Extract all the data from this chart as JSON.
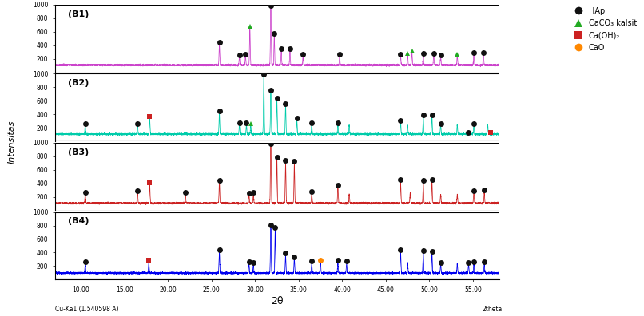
{
  "title": "",
  "xlabel": "2θ",
  "ylabel": "Intensitas",
  "x_label_bottom": "Cu-Ka1 (1.540598 A)",
  "x_label_right": "2theta",
  "panels": [
    "B1",
    "B2",
    "B3",
    "B4"
  ],
  "panel_colors": [
    "#cc44cc",
    "#00ccaa",
    "#cc2222",
    "#0000ee"
  ],
  "x_range": [
    7,
    58
  ],
  "y_range": [
    0,
    1000
  ],
  "y_ticks": [
    200,
    400,
    600,
    800,
    1000
  ],
  "x_ticks": [
    10.0,
    15.0,
    20.0,
    25.0,
    30.0,
    35.0,
    40.0,
    45.0,
    50.0,
    55.0
  ],
  "legend_labels": [
    "HAp",
    "CaCO₃ kalsit",
    "Ca(OH)₂",
    "CaO"
  ],
  "legend_colors": [
    "#111111",
    "#22aa22",
    "#cc2222",
    "#ff8800"
  ],
  "background_color": "#ffffff",
  "noise_base": 110,
  "noise_std": 6,
  "peak_sigma": 0.04,
  "B1_peaks": [
    [
      25.9,
      310
    ],
    [
      28.2,
      130
    ],
    [
      28.9,
      130
    ],
    [
      31.8,
      870
    ],
    [
      32.2,
      430
    ],
    [
      33.0,
      210
    ],
    [
      34.0,
      210
    ],
    [
      35.5,
      130
    ],
    [
      39.7,
      130
    ],
    [
      46.7,
      130
    ],
    [
      47.5,
      140
    ],
    [
      48.0,
      180
    ],
    [
      49.3,
      130
    ],
    [
      50.5,
      150
    ],
    [
      51.3,
      130
    ],
    [
      53.2,
      140
    ],
    [
      55.1,
      160
    ],
    [
      56.2,
      160
    ],
    [
      29.4,
      550
    ]
  ],
  "B1_HAp_markers": [
    25.9,
    28.2,
    28.9,
    31.8,
    32.2,
    33.0,
    34.0,
    35.5,
    39.7,
    46.7,
    49.3,
    50.5,
    51.3,
    55.1,
    56.2
  ],
  "B1_CaCO3_markers": [
    29.4,
    47.5,
    48.0,
    53.2
  ],
  "B1_CaOH2_markers": [],
  "B1_CaO_markers": [],
  "B2_peaks": [
    [
      10.5,
      130
    ],
    [
      16.5,
      130
    ],
    [
      25.9,
      310
    ],
    [
      28.2,
      130
    ],
    [
      29.0,
      130
    ],
    [
      31.0,
      900
    ],
    [
      31.8,
      620
    ],
    [
      32.5,
      500
    ],
    [
      33.5,
      420
    ],
    [
      34.8,
      200
    ],
    [
      36.5,
      130
    ],
    [
      39.5,
      130
    ],
    [
      40.8,
      130
    ],
    [
      46.7,
      160
    ],
    [
      47.5,
      130
    ],
    [
      49.3,
      260
    ],
    [
      50.3,
      260
    ],
    [
      51.3,
      130
    ],
    [
      53.2,
      130
    ],
    [
      55.1,
      130
    ],
    [
      56.7,
      130
    ],
    [
      17.9,
      230
    ],
    [
      29.5,
      130
    ]
  ],
  "B2_HAp_markers": [
    10.5,
    16.5,
    25.9,
    28.2,
    29.0,
    31.0,
    31.8,
    32.5,
    33.5,
    34.8,
    36.5,
    39.5,
    46.7,
    49.3,
    50.3,
    51.3,
    54.5,
    55.1
  ],
  "B2_CaCO3_markers": [
    29.5
  ],
  "B2_CaOH2_markers": [
    17.9,
    57.0
  ],
  "B2_CaO_markers": [],
  "B3_peaks": [
    [
      10.5,
      130
    ],
    [
      16.5,
      160
    ],
    [
      22.0,
      130
    ],
    [
      25.9,
      310
    ],
    [
      29.3,
      130
    ],
    [
      29.8,
      130
    ],
    [
      31.8,
      980
    ],
    [
      32.5,
      650
    ],
    [
      33.5,
      600
    ],
    [
      34.5,
      570
    ],
    [
      36.5,
      150
    ],
    [
      39.5,
      230
    ],
    [
      40.8,
      140
    ],
    [
      46.7,
      310
    ],
    [
      47.8,
      160
    ],
    [
      49.3,
      310
    ],
    [
      50.3,
      310
    ],
    [
      51.3,
      130
    ],
    [
      53.2,
      130
    ],
    [
      55.1,
      160
    ],
    [
      56.3,
      160
    ],
    [
      17.9,
      270
    ]
  ],
  "B3_HAp_markers": [
    10.5,
    16.5,
    22.0,
    25.9,
    29.3,
    29.8,
    31.8,
    32.5,
    33.5,
    34.5,
    36.5,
    39.5,
    46.7,
    49.3,
    50.3,
    55.1,
    56.3
  ],
  "B3_CaCO3_markers": [],
  "B3_CaOH2_markers": [
    17.9
  ],
  "B3_CaO_markers": [],
  "B4_peaks": [
    [
      10.5,
      130
    ],
    [
      25.9,
      310
    ],
    [
      29.3,
      130
    ],
    [
      29.8,
      130
    ],
    [
      31.8,
      680
    ],
    [
      32.3,
      640
    ],
    [
      33.5,
      260
    ],
    [
      34.5,
      210
    ],
    [
      36.5,
      150
    ],
    [
      39.5,
      150
    ],
    [
      40.5,
      150
    ],
    [
      46.7,
      310
    ],
    [
      47.5,
      150
    ],
    [
      49.3,
      290
    ],
    [
      50.3,
      290
    ],
    [
      51.3,
      130
    ],
    [
      53.2,
      130
    ],
    [
      54.5,
      130
    ],
    [
      55.1,
      130
    ],
    [
      56.3,
      130
    ],
    [
      17.8,
      160
    ],
    [
      37.5,
      160
    ]
  ],
  "B4_HAp_markers": [
    10.5,
    25.9,
    29.3,
    29.8,
    31.8,
    32.3,
    33.5,
    34.5,
    36.5,
    39.5,
    40.5,
    46.7,
    49.3,
    50.3,
    51.3,
    54.5,
    55.1,
    56.3
  ],
  "B4_CaCO3_markers": [],
  "B4_CaOH2_markers": [
    17.8
  ],
  "B4_CaO_markers": [
    37.5
  ]
}
